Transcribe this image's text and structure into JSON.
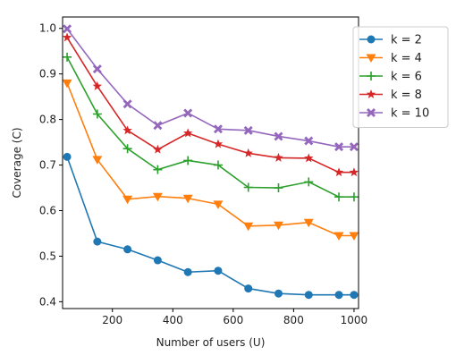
{
  "chart_data": {
    "type": "line",
    "title": "",
    "xlabel": "Number of users (U)",
    "ylabel": "Coverage (C)",
    "xlim": [
      35,
      1015
    ],
    "ylim": [
      0.385,
      1.025
    ],
    "x_ticks": [
      200,
      400,
      600,
      800,
      1000
    ],
    "y_ticks": [
      0.4,
      0.5,
      0.6,
      0.7,
      0.8,
      0.9,
      1.0
    ],
    "x_tick_labels": [
      "200",
      "400",
      "600",
      "800",
      "1000"
    ],
    "y_tick_labels": [
      "0.4",
      "0.5",
      "0.6",
      "0.7",
      "0.8",
      "0.9",
      "1.0"
    ],
    "grid": false,
    "legend_position": "outside-top-right",
    "x": [
      50,
      150,
      250,
      350,
      450,
      550,
      650,
      750,
      850,
      950,
      1000
    ],
    "series": [
      {
        "name": "k = 2",
        "color": "#1f77b4",
        "marker": "circle",
        "values": [
          0.718,
          0.532,
          0.515,
          0.491,
          0.465,
          0.468,
          0.429,
          0.418,
          0.415,
          0.415,
          0.415
        ]
      },
      {
        "name": "k = 4",
        "color": "#ff7f0e",
        "marker": "triangle-down",
        "values": [
          0.88,
          0.712,
          0.625,
          0.631,
          0.627,
          0.614,
          0.566,
          0.568,
          0.574,
          0.545,
          0.545
        ]
      },
      {
        "name": "k = 6",
        "color": "#2ca02c",
        "marker": "plus",
        "values": [
          0.937,
          0.812,
          0.736,
          0.69,
          0.71,
          0.7,
          0.651,
          0.65,
          0.663,
          0.63,
          0.63
        ]
      },
      {
        "name": "k = 8",
        "color": "#d62728",
        "marker": "star",
        "values": [
          0.98,
          0.873,
          0.776,
          0.734,
          0.77,
          0.746,
          0.726,
          0.716,
          0.715,
          0.684,
          0.684
        ]
      },
      {
        "name": "k = 10",
        "color": "#9467bd",
        "marker": "x-filled",
        "values": [
          0.999,
          0.911,
          0.834,
          0.787,
          0.814,
          0.779,
          0.776,
          0.763,
          0.753,
          0.74,
          0.74
        ]
      }
    ]
  }
}
